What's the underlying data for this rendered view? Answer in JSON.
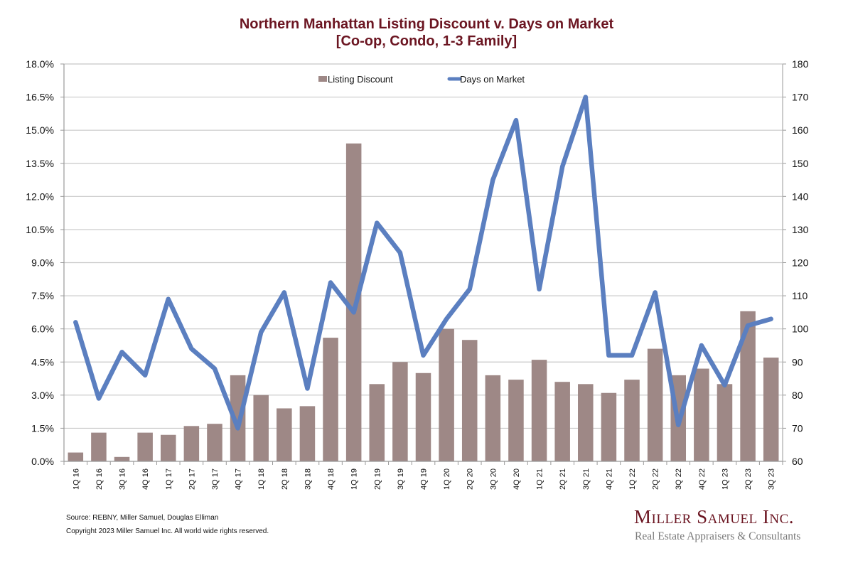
{
  "chart_data": {
    "type": "bar",
    "title": "Northern Manhattan Listing Discount v. Days on Market",
    "subtitle": "[Co-op, Condo, 1-3 Family]",
    "categories": [
      "1Q 16",
      "2Q 16",
      "3Q 16",
      "4Q 16",
      "1Q 17",
      "2Q 17",
      "3Q 17",
      "4Q 17",
      "1Q 18",
      "2Q 18",
      "3Q 18",
      "4Q 18",
      "1Q 19",
      "2Q 19",
      "3Q 19",
      "4Q 19",
      "1Q 20",
      "2Q 20",
      "3Q 20",
      "4Q 20",
      "1Q 21",
      "2Q 21",
      "3Q 21",
      "4Q 21",
      "1Q 22",
      "2Q 22",
      "3Q 22",
      "4Q 22",
      "1Q 23",
      "2Q 23",
      "3Q 23"
    ],
    "series": [
      {
        "name": "Listing Discount",
        "type": "bar",
        "axis": "left",
        "color": "#9e8886",
        "values": [
          0.4,
          1.3,
          0.2,
          1.3,
          1.2,
          1.6,
          1.7,
          3.9,
          3.0,
          2.4,
          2.5,
          5.6,
          14.4,
          3.5,
          4.5,
          4.0,
          6.0,
          5.5,
          3.9,
          3.7,
          4.6,
          3.6,
          3.5,
          3.1,
          3.7,
          5.1,
          3.9,
          4.2,
          3.5,
          6.8,
          4.7
        ]
      },
      {
        "name": "Days on Market",
        "type": "line",
        "axis": "right",
        "color": "#5b7fc0",
        "values": [
          102,
          79,
          93,
          86,
          109,
          94,
          88,
          70,
          99,
          111,
          82,
          114,
          105,
          132,
          123,
          92,
          103,
          112,
          145,
          163,
          112,
          149,
          170,
          92,
          92,
          111,
          71,
          95,
          83,
          101,
          103
        ]
      }
    ],
    "y_left": {
      "min": 0,
      "max": 18,
      "step": 1.5,
      "ticks": [
        "0.0%",
        "1.5%",
        "3.0%",
        "4.5%",
        "6.0%",
        "7.5%",
        "9.0%",
        "10.5%",
        "12.0%",
        "13.5%",
        "15.0%",
        "16.5%",
        "18.0%"
      ]
    },
    "y_right": {
      "min": 60,
      "max": 180,
      "step": 10,
      "ticks": [
        "60",
        "70",
        "80",
        "90",
        "100",
        "110",
        "120",
        "130",
        "140",
        "150",
        "160",
        "170",
        "180"
      ]
    },
    "xlabel": "",
    "ylabel_left": "",
    "ylabel_right": "",
    "grid": true,
    "legend": {
      "placement": "top-center",
      "entries": [
        "Listing Discount",
        "Days on Market"
      ]
    }
  },
  "footer": {
    "source": "Source: REBNY, Miller Samuel, Douglas Elliman",
    "copyright": "Copyright 2023 Miller Samuel Inc.  All world wide rights reserved."
  },
  "brand": {
    "name": "Miller Samuel Inc.",
    "tagline": "Real Estate Appraisers & Consultants"
  }
}
